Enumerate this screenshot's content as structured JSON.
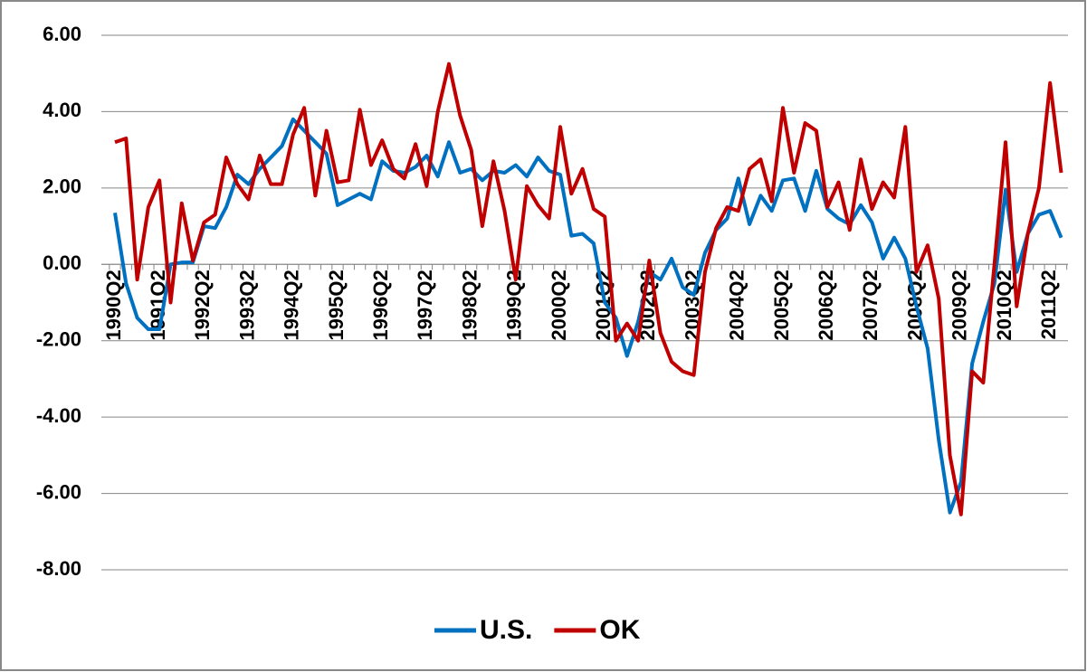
{
  "chart_data": {
    "type": "line",
    "categories": [
      "1990Q2",
      null,
      null,
      null,
      "1991Q2",
      null,
      null,
      null,
      "1992Q2",
      null,
      null,
      null,
      "1993Q2",
      null,
      null,
      null,
      "1994Q2",
      null,
      null,
      null,
      "1995Q2",
      null,
      null,
      null,
      "1996Q2",
      null,
      null,
      null,
      "1997Q2",
      null,
      null,
      null,
      "1998Q2",
      null,
      null,
      null,
      "1999Q2",
      null,
      null,
      null,
      "2000Q2",
      null,
      null,
      null,
      "2001Q2",
      null,
      null,
      null,
      "2002Q2",
      null,
      null,
      null,
      "2003Q2",
      null,
      null,
      null,
      "2004Q2",
      null,
      null,
      null,
      "2005Q2",
      null,
      null,
      null,
      "2006Q2",
      null,
      null,
      null,
      "2007Q2",
      null,
      null,
      null,
      "2008Q2",
      null,
      null,
      null,
      "2009Q2",
      null,
      null,
      null,
      "2010Q2",
      null,
      null,
      null,
      "2011Q2",
      null
    ],
    "series": [
      {
        "name": "U.S.",
        "color": "#0070c0",
        "values": [
          1.35,
          -0.5,
          -1.4,
          -1.7,
          -1.7,
          0.0,
          0.05,
          0.05,
          1.0,
          0.95,
          1.5,
          2.35,
          2.1,
          2.5,
          2.8,
          3.1,
          3.8,
          3.5,
          3.2,
          2.9,
          1.55,
          1.7,
          1.85,
          1.7,
          2.7,
          2.45,
          2.4,
          2.55,
          2.85,
          2.3,
          3.2,
          2.4,
          2.5,
          2.2,
          2.45,
          2.4,
          2.6,
          2.3,
          2.8,
          2.45,
          2.35,
          0.75,
          0.8,
          0.55,
          -1.0,
          -1.4,
          -2.4,
          -1.5,
          -0.2,
          -0.4,
          0.15,
          -0.6,
          -0.8,
          0.3,
          0.9,
          1.2,
          2.25,
          1.05,
          1.8,
          1.4,
          2.2,
          2.25,
          1.4,
          2.45,
          1.45,
          1.2,
          1.05,
          1.55,
          1.1,
          0.15,
          0.7,
          0.15,
          -1.1,
          -2.2,
          -4.6,
          -6.5,
          -5.7,
          -2.6,
          -1.5,
          -0.5,
          1.95,
          -0.2,
          0.8,
          1.3,
          1.4,
          0.7
        ]
      },
      {
        "name": "OK",
        "color": "#c00000",
        "values": [
          3.2,
          3.3,
          -0.4,
          1.5,
          2.2,
          -1.0,
          1.6,
          0.1,
          1.1,
          1.3,
          2.8,
          2.1,
          1.7,
          2.85,
          2.1,
          2.1,
          3.4,
          4.1,
          1.8,
          3.5,
          2.15,
          2.2,
          4.05,
          2.6,
          3.25,
          2.5,
          2.25,
          3.15,
          2.05,
          4.0,
          5.25,
          3.9,
          3.0,
          1.0,
          2.7,
          1.4,
          -0.4,
          2.05,
          1.55,
          1.2,
          3.6,
          1.85,
          2.5,
          1.45,
          1.25,
          -2.0,
          -1.55,
          -2.0,
          0.1,
          -1.8,
          -2.55,
          -2.8,
          -2.9,
          -0.2,
          0.95,
          1.5,
          1.4,
          2.5,
          2.75,
          1.65,
          4.1,
          2.4,
          3.7,
          3.5,
          1.5,
          2.15,
          0.9,
          2.75,
          1.45,
          2.15,
          1.75,
          3.6,
          -0.2,
          0.5,
          -0.9,
          -5.0,
          -6.55,
          -2.8,
          -3.1,
          0.0,
          3.2,
          -1.1,
          0.8,
          2.0,
          4.75,
          2.4
        ]
      }
    ],
    "ylim": [
      -8,
      6
    ],
    "yticks": [
      {
        "value": -8,
        "label": "-8.00"
      },
      {
        "value": -6,
        "label": "-6.00"
      },
      {
        "value": -4,
        "label": "-4.00"
      },
      {
        "value": -2,
        "label": "-2.00"
      },
      {
        "value": 0,
        "label": "0.00"
      },
      {
        "value": 2,
        "label": "2.00"
      },
      {
        "value": 4,
        "label": "4.00"
      },
      {
        "value": 6,
        "label": "6.00"
      }
    ],
    "grid": true
  }
}
